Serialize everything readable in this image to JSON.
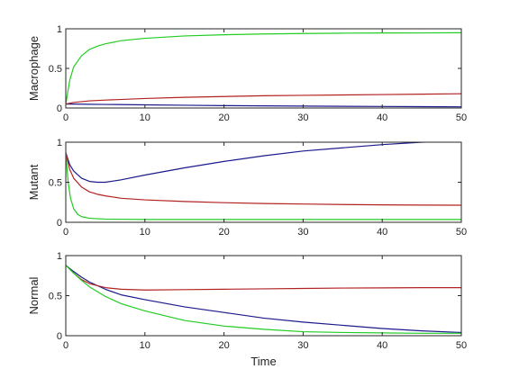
{
  "chart_data": [
    {
      "type": "line",
      "title": "",
      "xlabel": "",
      "ylabel": "Macrophage",
      "xlim": [
        0,
        50
      ],
      "ylim": [
        0,
        1
      ],
      "xticks": [
        0,
        10,
        20,
        30,
        40,
        50
      ],
      "yticks": [
        0,
        0.5,
        1
      ],
      "grid": false,
      "series": [
        {
          "color": "#1a1a8c",
          "x": [
            0,
            1,
            2,
            3,
            5,
            10,
            15,
            20,
            25,
            30,
            35,
            40,
            45,
            50
          ],
          "y": [
            0.05,
            0.05,
            0.048,
            0.047,
            0.045,
            0.04,
            0.035,
            0.03,
            0.027,
            0.024,
            0.021,
            0.019,
            0.017,
            0.015
          ]
        },
        {
          "color": "#b22222",
          "x": [
            0,
            1,
            2,
            3,
            5,
            10,
            15,
            20,
            25,
            30,
            35,
            40,
            45,
            50
          ],
          "y": [
            0.05,
            0.07,
            0.08,
            0.09,
            0.1,
            0.12,
            0.135,
            0.145,
            0.155,
            0.16,
            0.165,
            0.17,
            0.175,
            0.18
          ]
        },
        {
          "color": "#22cc22",
          "x": [
            0,
            0.5,
            1,
            2,
            3,
            4,
            5,
            7,
            10,
            15,
            20,
            25,
            30,
            35,
            40,
            45,
            50
          ],
          "y": [
            0.05,
            0.35,
            0.52,
            0.66,
            0.74,
            0.78,
            0.81,
            0.85,
            0.88,
            0.91,
            0.925,
            0.935,
            0.94,
            0.945,
            0.947,
            0.948,
            0.95
          ]
        }
      ]
    },
    {
      "type": "line",
      "title": "",
      "xlabel": "",
      "ylabel": "Mutant",
      "xlim": [
        0,
        50
      ],
      "ylim": [
        0,
        1
      ],
      "xticks": [
        0,
        10,
        20,
        30,
        40,
        50
      ],
      "yticks": [
        0,
        0.5,
        1
      ],
      "grid": false,
      "series": [
        {
          "color": "#1a1a8c",
          "x": [
            0,
            0.5,
            1,
            2,
            3,
            4,
            5,
            7,
            10,
            15,
            20,
            25,
            30,
            35,
            40,
            45,
            50
          ],
          "y": [
            0.87,
            0.72,
            0.64,
            0.55,
            0.51,
            0.5,
            0.5,
            0.53,
            0.59,
            0.68,
            0.76,
            0.83,
            0.89,
            0.93,
            0.97,
            1.0,
            1.01
          ]
        },
        {
          "color": "#b22222",
          "x": [
            0,
            0.5,
            1,
            2,
            3,
            4,
            5,
            7,
            10,
            15,
            20,
            25,
            30,
            35,
            40,
            45,
            50
          ],
          "y": [
            0.87,
            0.66,
            0.55,
            0.44,
            0.38,
            0.35,
            0.33,
            0.3,
            0.28,
            0.26,
            0.245,
            0.235,
            0.228,
            0.222,
            0.218,
            0.215,
            0.213
          ]
        },
        {
          "color": "#22cc22",
          "x": [
            0,
            0.3,
            0.6,
            1,
            1.5,
            2,
            3,
            5,
            10,
            20,
            30,
            40,
            50
          ],
          "y": [
            0.87,
            0.5,
            0.3,
            0.17,
            0.1,
            0.07,
            0.05,
            0.04,
            0.035,
            0.035,
            0.035,
            0.035,
            0.035
          ]
        }
      ]
    },
    {
      "type": "line",
      "title": "",
      "xlabel": "Time",
      "ylabel": "Normal",
      "xlim": [
        0,
        50
      ],
      "ylim": [
        0,
        1
      ],
      "xticks": [
        0,
        10,
        20,
        30,
        40,
        50
      ],
      "yticks": [
        0,
        0.5,
        1
      ],
      "grid": false,
      "series": [
        {
          "color": "#1a1a8c",
          "x": [
            0,
            1,
            2,
            3,
            5,
            7,
            10,
            15,
            20,
            25,
            30,
            35,
            40,
            45,
            50
          ],
          "y": [
            0.88,
            0.8,
            0.73,
            0.67,
            0.58,
            0.51,
            0.45,
            0.36,
            0.29,
            0.22,
            0.17,
            0.13,
            0.09,
            0.06,
            0.04
          ]
        },
        {
          "color": "#b22222",
          "x": [
            0,
            1,
            2,
            3,
            5,
            7,
            10,
            15,
            20,
            25,
            30,
            35,
            40,
            45,
            50
          ],
          "y": [
            0.88,
            0.78,
            0.7,
            0.65,
            0.6,
            0.58,
            0.57,
            0.575,
            0.58,
            0.585,
            0.59,
            0.595,
            0.597,
            0.6,
            0.6
          ]
        },
        {
          "color": "#22cc22",
          "x": [
            0,
            1,
            2,
            3,
            5,
            7,
            10,
            15,
            20,
            25,
            30,
            35,
            40,
            45,
            50
          ],
          "y": [
            0.88,
            0.78,
            0.69,
            0.61,
            0.49,
            0.4,
            0.31,
            0.19,
            0.12,
            0.08,
            0.05,
            0.04,
            0.035,
            0.03,
            0.03
          ]
        }
      ]
    }
  ]
}
